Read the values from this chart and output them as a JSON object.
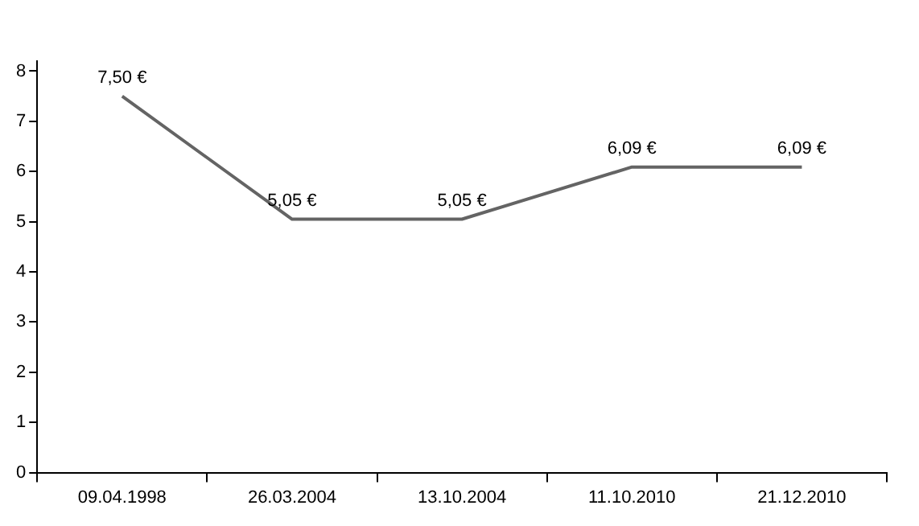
{
  "chart_data": {
    "type": "line",
    "categories": [
      "09.04.1998",
      "26.03.2004",
      "13.10.2004",
      "11.10.2010",
      "21.12.2010"
    ],
    "series": [
      {
        "color": "#646464",
        "values": [
          7.5,
          5.05,
          5.05,
          6.09,
          6.09
        ],
        "value_labels": [
          "7,50 €",
          "5,05 €",
          "5,05 €",
          "6,09 €",
          "6,09 €"
        ]
      }
    ],
    "ylim": [
      0,
      8.2
    ],
    "yticks": [
      0,
      1,
      2,
      3,
      4,
      5,
      6,
      7,
      8
    ],
    "grid": false,
    "legend": false,
    "marker": "none",
    "line_style": "solid"
  }
}
